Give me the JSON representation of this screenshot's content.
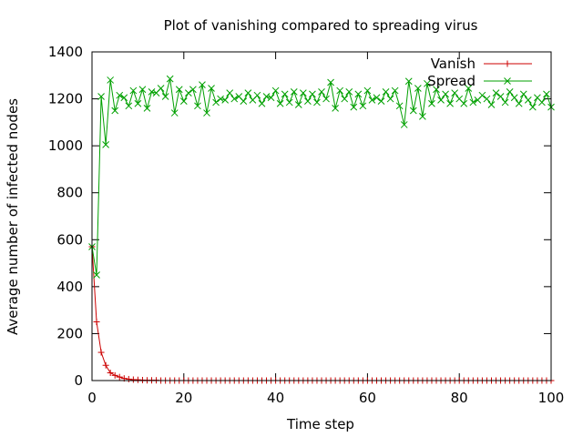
{
  "chart_data": {
    "type": "line",
    "title": "Plot of vanishing compared to spreading virus",
    "xlabel": "Time step",
    "ylabel": "Average number of infected nodes",
    "xlim": [
      0,
      100
    ],
    "ylim": [
      0,
      1400
    ],
    "xticks": [
      "0",
      "20",
      "40",
      "60",
      "80",
      "100"
    ],
    "yticks": [
      "0",
      "200",
      "400",
      "600",
      "800",
      "1000",
      "1200",
      "1400"
    ],
    "grid": false,
    "legend_position": "top-right",
    "x": [
      0,
      1,
      2,
      3,
      4,
      5,
      6,
      7,
      8,
      9,
      10,
      11,
      12,
      13,
      14,
      15,
      16,
      17,
      18,
      19,
      20,
      21,
      22,
      23,
      24,
      25,
      26,
      27,
      28,
      29,
      30,
      31,
      32,
      33,
      34,
      35,
      36,
      37,
      38,
      39,
      40,
      41,
      42,
      43,
      44,
      45,
      46,
      47,
      48,
      49,
      50,
      51,
      52,
      53,
      54,
      55,
      56,
      57,
      58,
      59,
      60,
      61,
      62,
      63,
      64,
      65,
      66,
      67,
      68,
      69,
      70,
      71,
      72,
      73,
      74,
      75,
      76,
      77,
      78,
      79,
      80,
      81,
      82,
      83,
      84,
      85,
      86,
      87,
      88,
      89,
      90,
      91,
      92,
      93,
      94,
      95,
      96,
      97,
      98,
      99,
      100
    ],
    "series": [
      {
        "name": "Vanish",
        "color": "#cc0000",
        "marker": "+",
        "values": [
          570,
          250,
          120,
          65,
          33,
          22,
          15,
          9,
          6,
          4,
          3,
          2,
          1,
          1,
          1,
          0,
          0,
          0,
          0,
          0,
          0,
          0,
          0,
          0,
          0,
          0,
          0,
          0,
          0,
          0,
          0,
          0,
          0,
          0,
          0,
          0,
          0,
          0,
          0,
          0,
          0,
          0,
          0,
          0,
          0,
          0,
          0,
          0,
          0,
          0,
          0,
          0,
          0,
          0,
          0,
          0,
          0,
          0,
          0,
          0,
          0,
          0,
          0,
          0,
          0,
          0,
          0,
          0,
          0,
          0,
          0,
          0,
          0,
          0,
          0,
          0,
          0,
          0,
          0,
          0,
          0,
          0,
          0,
          0,
          0,
          0,
          0,
          0,
          0,
          0,
          0,
          0,
          0,
          0,
          0,
          0,
          0,
          0,
          0,
          0,
          0
        ]
      },
      {
        "name": "Spread",
        "color": "#00a000",
        "marker": "x",
        "values": [
          570,
          450,
          1210,
          1005,
          1280,
          1150,
          1215,
          1205,
          1170,
          1235,
          1180,
          1240,
          1160,
          1230,
          1225,
          1245,
          1210,
          1285,
          1140,
          1240,
          1190,
          1225,
          1240,
          1170,
          1260,
          1140,
          1245,
          1185,
          1200,
          1195,
          1225,
          1200,
          1210,
          1190,
          1225,
          1195,
          1215,
          1180,
          1210,
          1205,
          1235,
          1180,
          1220,
          1185,
          1230,
          1175,
          1225,
          1190,
          1220,
          1185,
          1230,
          1200,
          1270,
          1160,
          1235,
          1200,
          1230,
          1165,
          1220,
          1170,
          1235,
          1195,
          1205,
          1190,
          1230,
          1200,
          1235,
          1170,
          1090,
          1275,
          1150,
          1245,
          1125,
          1265,
          1180,
          1240,
          1195,
          1220,
          1180,
          1225,
          1200,
          1180,
          1245,
          1185,
          1195,
          1215,
          1200,
          1175,
          1225,
          1210,
          1185,
          1230,
          1205,
          1180,
          1220,
          1195,
          1165,
          1205,
          1185,
          1220,
          1165
        ]
      }
    ]
  }
}
